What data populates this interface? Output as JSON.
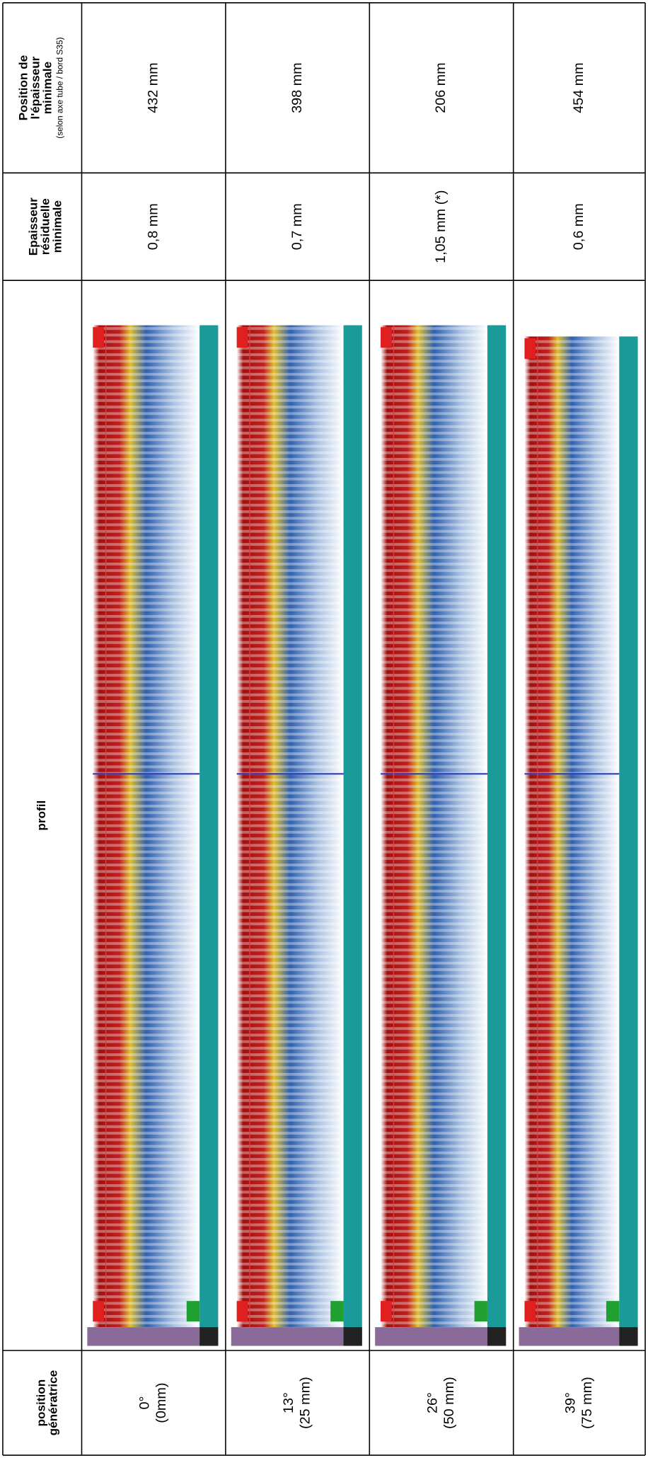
{
  "header": {
    "position_min": [
      "Position de",
      "l'épaisseur",
      "minimale",
      "(selon axe tube / bord S35)"
    ],
    "epaisseur": [
      "Epaisseur",
      "résiduelle",
      "minimale"
    ],
    "profil": "profil",
    "position": [
      "position",
      "génératrice"
    ]
  },
  "rows": [
    {
      "position": [
        "0°",
        "(0mm)"
      ],
      "epaisseur": "0,8 mm",
      "position_min": "432 mm"
    },
    {
      "position": [
        "13°",
        "(25 mm)"
      ],
      "epaisseur": "0,7 mm",
      "position_min": "398 mm"
    },
    {
      "position": [
        "26°",
        "(50 mm)"
      ],
      "epaisseur": "1,05 mm (*)",
      "position_min": "206 mm"
    },
    {
      "position": [
        "39°",
        "(75 mm)"
      ],
      "epaisseur": "0,6 mm",
      "position_min": "454 mm"
    }
  ]
}
